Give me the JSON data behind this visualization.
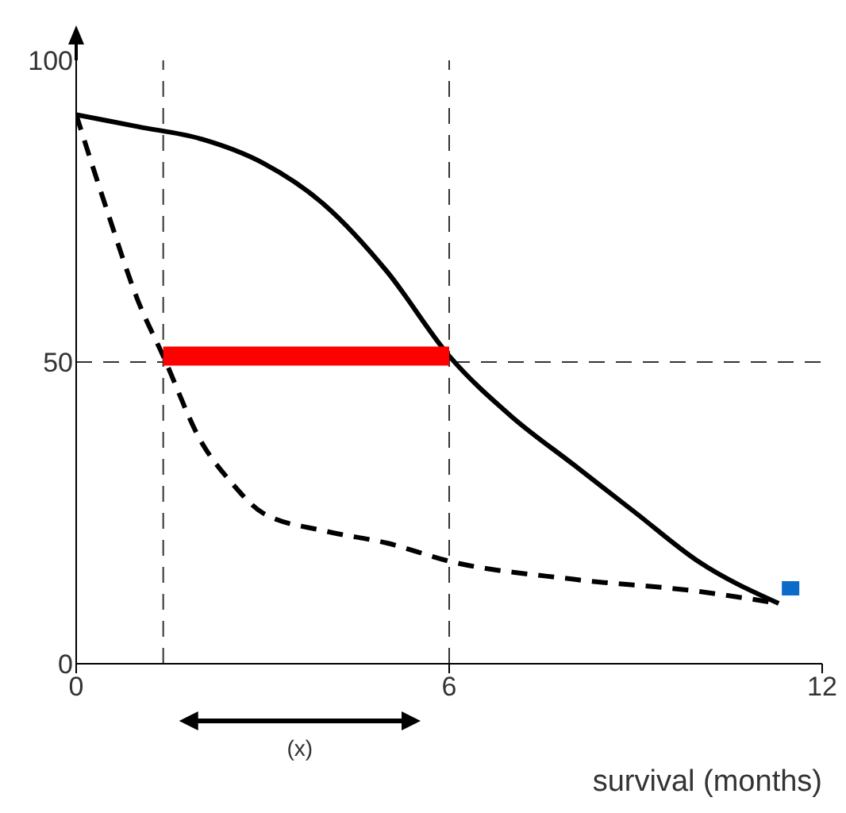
{
  "chart_data": {
    "type": "line",
    "xlabel": "survival (months)",
    "xlim": [
      0,
      12
    ],
    "xticks": [
      0,
      6,
      12
    ],
    "ylim": [
      0,
      100
    ],
    "yticks": [
      0,
      50,
      100
    ],
    "grid": false,
    "legend": false,
    "marker": "none",
    "series": [
      {
        "color": "#000000",
        "line_style": "solid",
        "x": [
          0,
          1,
          2,
          3,
          4,
          5,
          6,
          7,
          8,
          9,
          10,
          11.3
        ],
        "values": [
          91,
          89,
          87,
          83,
          76,
          65,
          51,
          41,
          33,
          25,
          17,
          10
        ]
      },
      {
        "color": "#000000",
        "line_style": "dashed",
        "x": [
          0,
          0.5,
          1,
          1.4,
          2,
          2.5,
          3,
          4,
          5,
          6,
          8,
          10,
          11.3
        ],
        "values": [
          91,
          75,
          60,
          51,
          37,
          30,
          25,
          22,
          20,
          17,
          14,
          12,
          10
        ]
      },
      {
        "color": "#ff0000",
        "line_style": "solid",
        "x": [
          1.4,
          6
        ],
        "values": [
          51,
          51
        ]
      }
    ],
    "ref_lines": [
      {
        "axis": "y",
        "value": 50,
        "line_style": "dashed"
      },
      {
        "axis": "x",
        "value": 1.4,
        "line_style": "dashed"
      },
      {
        "axis": "x",
        "value": 6,
        "line_style": "dashed"
      }
    ],
    "annotations": [
      "(x)"
    ]
  }
}
